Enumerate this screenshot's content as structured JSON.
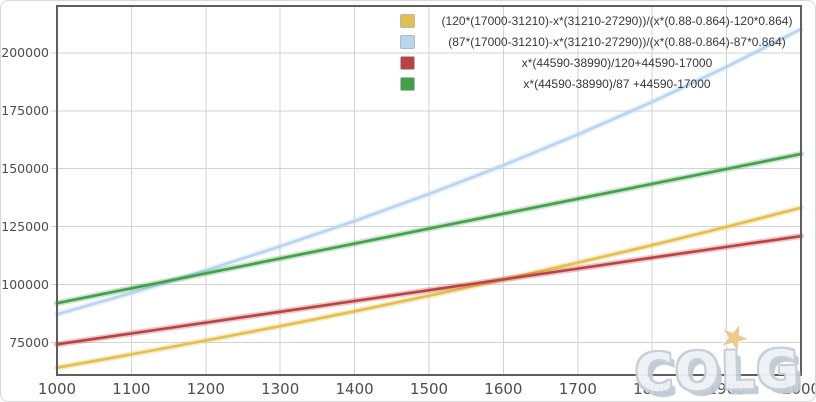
{
  "watermark": {
    "text": "COLG",
    "star": "★"
  },
  "axes": {
    "x_tick_labels": [
      "1000",
      "1100",
      "1200",
      "1300",
      "1400",
      "1500",
      "1600",
      "1700",
      "1800",
      "1900",
      "2000"
    ],
    "y_tick_labels": [
      "75000",
      "100000",
      "125000",
      "150000",
      "175000",
      "200000"
    ]
  },
  "colors": {
    "grid": "#d3d3d3",
    "plot_border": "#5e5e5e",
    "tick_text": "#4d4d4d",
    "legend_text": "#383838",
    "watermark_fill": "#eef2f6",
    "watermark_outline": "#c6cdd5",
    "star": "#eac887"
  },
  "chart_data": {
    "type": "line",
    "title": "",
    "xlabel": "",
    "ylabel": "",
    "grid": true,
    "legend_position": "top-right",
    "xlim": [
      1000,
      2000
    ],
    "ylim": [
      61000,
      220200
    ],
    "x_gridlines": [
      1100,
      1200,
      1300,
      1400,
      1500,
      1600,
      1700,
      1800,
      1900
    ],
    "y_gridlines": [
      75000,
      100000,
      125000,
      150000,
      175000,
      200000
    ],
    "x": [
      1000,
      1100,
      1200,
      1300,
      1400,
      1500,
      1600,
      1700,
      1800,
      1900,
      2000
    ],
    "series": [
      {
        "name": "(120*(17000-31210)-x*(31210-27290))/(x*(0.88-0.864)-120*0.864)",
        "color": "#e3bf4d",
        "values": [
          64156,
          69903,
          75867,
          82060,
          88500,
          95196,
          102167,
          109430,
          117003,
          124909,
          133169
        ]
      },
      {
        "name": "(87*(17000-31210)-x*(31210-27290))/(x*(0.88-0.864)-87*0.864)",
        "color": "#b7d5ef",
        "values": [
          87147,
          96378,
          106137,
          116471,
          127431,
          139077,
          151474,
          164699,
          178835,
          193985,
          210254
        ]
      },
      {
        "name": "x*(44590-38990)/120+44590-17000",
        "color": "#ba4341",
        "values": [
          74257,
          78923,
          83590,
          88257,
          92923,
          97590,
          102257,
          106923,
          111590,
          116257,
          120923
        ]
      },
      {
        "name": "x*(44590-38990)/87 +44590-17000",
        "color": "#42a04b",
        "values": [
          91958,
          98395,
          104831,
          111268,
          117705,
          124142,
          130579,
          137015,
          143452,
          149889,
          156326
        ]
      }
    ]
  }
}
